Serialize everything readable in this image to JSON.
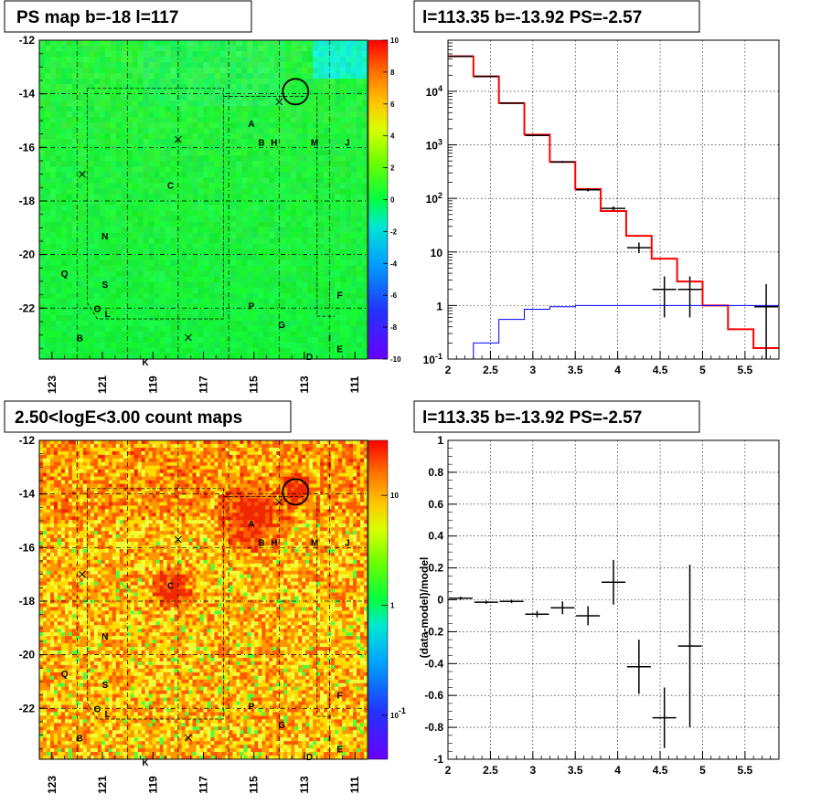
{
  "chart_data": [
    {
      "id": "ps_map",
      "type": "heatmap",
      "title": "PS map b=-18 l=117",
      "x_ticks": [
        "123",
        "121",
        "119",
        "117",
        "115",
        "113",
        "111"
      ],
      "y_ticks": [
        "-12",
        "-14",
        "-16",
        "-18",
        "-20",
        "-22"
      ],
      "xlim": [
        123.5,
        110.5
      ],
      "ylim": [
        -23.9,
        -12
      ],
      "colorbar": {
        "min": -10,
        "max": 10,
        "ticks": [
          "10",
          "8",
          "6",
          "4",
          "2",
          "0",
          "-2",
          "-4",
          "-6",
          "-8",
          "-10"
        ]
      },
      "sources": [
        {
          "label": "A",
          "l": 115.1,
          "b": -15.1
        },
        {
          "label": "B",
          "l": 121.9,
          "b": -23.1
        },
        {
          "label": "H",
          "l": 114.2,
          "b": -15.8
        },
        {
          "label": "B",
          "l": 114.7,
          "b": -15.8
        },
        {
          "label": "M",
          "l": 112.6,
          "b": -15.8
        },
        {
          "label": "J",
          "l": 111.3,
          "b": -15.8
        },
        {
          "label": "C",
          "l": 118.3,
          "b": -17.4
        },
        {
          "label": "N",
          "l": 120.9,
          "b": -19.3
        },
        {
          "label": "Q",
          "l": 122.5,
          "b": -20.7
        },
        {
          "label": "S",
          "l": 120.9,
          "b": -21.1
        },
        {
          "label": "O",
          "l": 121.2,
          "b": -22.0
        },
        {
          "label": "L",
          "l": 120.8,
          "b": -22.2
        },
        {
          "label": "F",
          "l": 111.6,
          "b": -21.5
        },
        {
          "label": "P",
          "l": 115.1,
          "b": -21.9
        },
        {
          "label": "G",
          "l": 113.9,
          "b": -22.6
        },
        {
          "label": "I",
          "l": 112.0,
          "b": -23.1
        },
        {
          "label": "E",
          "l": 111.6,
          "b": -23.5
        },
        {
          "label": "D",
          "l": 112.8,
          "b": -23.8
        },
        {
          "label": "K",
          "l": 119.3,
          "b": -24.0
        }
      ],
      "crosses": [
        {
          "l": 114.0,
          "b": -14.3
        },
        {
          "l": 118.0,
          "b": -15.7
        },
        {
          "l": 121.8,
          "b": -17.0
        },
        {
          "l": 117.6,
          "b": -23.1
        }
      ],
      "circle": {
        "l": 113.35,
        "b": -13.92
      }
    },
    {
      "id": "spectrum",
      "type": "line",
      "title": "l=113.35 b=-13.92 PS=-2.57",
      "log_y": true,
      "xlim": [
        2,
        5.9
      ],
      "ylim": [
        0.1,
        90000
      ],
      "x_ticks": [
        "2",
        "2.5",
        "3",
        "3.5",
        "4",
        "4.5",
        "5",
        "5.5"
      ],
      "y_ticks": [
        {
          "label": "10",
          "exp": "4",
          "value": 10000
        },
        {
          "label": "10",
          "exp": "3",
          "value": 1000
        },
        {
          "label": "10",
          "exp": "2",
          "value": 100
        },
        {
          "label": "10",
          "exp": "",
          "value": 10
        },
        {
          "label": "1",
          "exp": "",
          "value": 1
        },
        {
          "label": "10",
          "exp": "-1",
          "value": 0.1
        }
      ],
      "bin_edges": [
        2.0,
        2.3,
        2.6,
        2.9,
        3.2,
        3.5,
        3.8,
        4.1,
        4.4,
        4.7,
        5.0,
        5.3,
        5.6,
        5.9
      ],
      "series": [
        {
          "values": [
            45000,
            19000,
            6000,
            1550,
            480,
            150,
            58,
            20,
            7.5,
            2.8,
            1.0,
            0.36,
            0.16
          ],
          "color": "#ff0000"
        },
        {
          "values": [
            0.1,
            0.2,
            0.55,
            0.85,
            0.95,
            1.0,
            1.0,
            1.0,
            1.0,
            1.0,
            1.0,
            1.0,
            1.0
          ],
          "color": "#0000ff"
        }
      ],
      "data_points": [
        {
          "x": 2.15,
          "y": 45000,
          "lo": 45000,
          "hi": 45000
        },
        {
          "x": 2.45,
          "y": 19000,
          "lo": 19000,
          "hi": 19000
        },
        {
          "x": 2.75,
          "y": 6000,
          "lo": 6000,
          "hi": 6000
        },
        {
          "x": 3.05,
          "y": 1500,
          "lo": 1460,
          "hi": 1540
        },
        {
          "x": 3.35,
          "y": 480,
          "lo": 460,
          "hi": 500
        },
        {
          "x": 3.65,
          "y": 145,
          "lo": 135,
          "hi": 155
        },
        {
          "x": 3.95,
          "y": 65,
          "lo": 59,
          "hi": 71
        },
        {
          "x": 4.25,
          "y": 12,
          "lo": 9.5,
          "hi": 15
        },
        {
          "x": 4.55,
          "y": 2.0,
          "lo": 0.6,
          "hi": 3.5
        },
        {
          "x": 4.85,
          "y": 2.0,
          "lo": 0.6,
          "hi": 3.5
        },
        {
          "x": 5.75,
          "y": 0.95,
          "lo": 0.1,
          "hi": 2.5
        }
      ]
    },
    {
      "id": "count_map",
      "type": "heatmap",
      "title": "2.50<logE<3.00 count maps",
      "x_ticks": [
        "123",
        "121",
        "119",
        "117",
        "115",
        "113",
        "111"
      ],
      "y_ticks": [
        "-12",
        "-14",
        "-16",
        "-18",
        "-20",
        "-22"
      ],
      "xlim": [
        123.5,
        110.5
      ],
      "ylim": [
        -23.9,
        -12
      ],
      "colorbar": {
        "log": true,
        "ticks": [
          {
            "label": "10",
            "exp": "",
            "value": 10
          },
          {
            "label": "1",
            "exp": "",
            "value": 1
          },
          {
            "label": "10",
            "exp": "-1",
            "value": 0.1
          }
        ]
      }
    },
    {
      "id": "residual",
      "type": "scatter",
      "title": "l=113.35 b=-13.92 PS=-2.57",
      "ylabel": "(data-model)/model",
      "xlim": [
        2,
        5.9
      ],
      "ylim": [
        -1,
        1
      ],
      "x_ticks": [
        "2",
        "2.5",
        "3",
        "3.5",
        "4",
        "4.5",
        "5",
        "5.5"
      ],
      "y_ticks": [
        "1",
        "0.8",
        "0.6",
        "0.4",
        "0.2",
        "0",
        "-0.2",
        "-0.4",
        "-0.6",
        "-0.8",
        "-1"
      ],
      "points": [
        {
          "x": 2.15,
          "y": 0.01,
          "err": 0.01
        },
        {
          "x": 2.45,
          "y": -0.015,
          "err": 0.01
        },
        {
          "x": 2.75,
          "y": -0.01,
          "err": 0.01
        },
        {
          "x": 3.05,
          "y": -0.09,
          "err": 0.02
        },
        {
          "x": 3.35,
          "y": -0.05,
          "err": 0.04
        },
        {
          "x": 3.65,
          "y": -0.1,
          "err": 0.06
        },
        {
          "x": 3.95,
          "y": 0.11,
          "err": 0.14
        },
        {
          "x": 4.25,
          "y": -0.42,
          "err": 0.17
        },
        {
          "x": 4.55,
          "y": -0.74,
          "err": 0.19
        },
        {
          "x": 4.85,
          "y": -0.29,
          "err": 0.51
        }
      ]
    }
  ]
}
